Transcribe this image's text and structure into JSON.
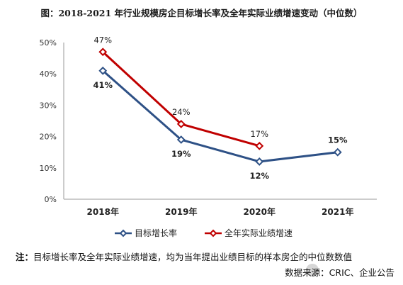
{
  "title": "图：2018-2021 年行业规模房企目标增长率及全年实际业绩增速变动（中位数）",
  "note_lead": "注：",
  "note_text": "目标增长率及全年实际业绩增速，均为当年提出业绩目标的样本房企的中位数数值",
  "source": "数据来源：CRIC、企业公告",
  "chart_data": {
    "type": "line",
    "categories": [
      "2018年",
      "2019年",
      "2020年",
      "2021年"
    ],
    "y_ticks": [
      "0%",
      "10%",
      "20%",
      "30%",
      "40%",
      "50%"
    ],
    "ylim": [
      0,
      50
    ],
    "grid": false,
    "legend_position": "bottom",
    "series": [
      {
        "name": "目标增长率",
        "color": "#2e5186",
        "values": [
          41,
          19,
          12,
          15
        ],
        "labels": [
          "41%",
          "19%",
          "12%",
          "15%"
        ],
        "label_bold": true
      },
      {
        "name": "全年实际业绩增速",
        "color": "#c00000",
        "values": [
          47,
          24,
          17,
          null
        ],
        "labels": [
          "47%",
          "24%",
          "17%",
          null
        ],
        "label_bold": false
      }
    ]
  }
}
